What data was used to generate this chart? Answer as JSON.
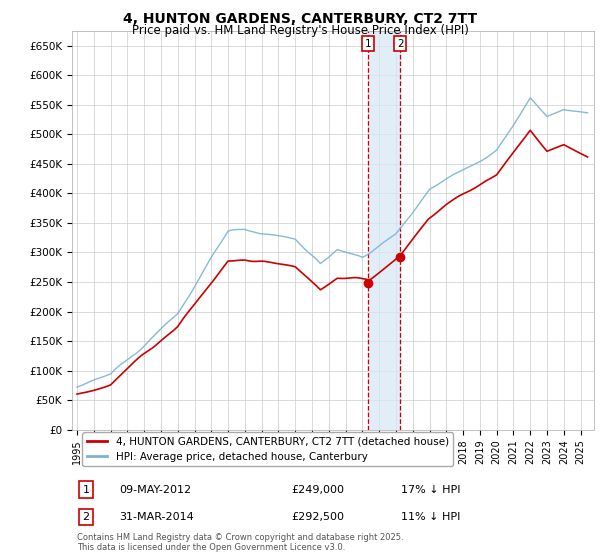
{
  "title": "4, HUNTON GARDENS, CANTERBURY, CT2 7TT",
  "subtitle": "Price paid vs. HM Land Registry's House Price Index (HPI)",
  "ylabel_ticks": [
    "£0",
    "£50K",
    "£100K",
    "£150K",
    "£200K",
    "£250K",
    "£300K",
    "£350K",
    "£400K",
    "£450K",
    "£500K",
    "£550K",
    "£600K",
    "£650K"
  ],
  "ytick_values": [
    0,
    50000,
    100000,
    150000,
    200000,
    250000,
    300000,
    350000,
    400000,
    450000,
    500000,
    550000,
    600000,
    650000
  ],
  "hpi_color": "#7ab3d4",
  "price_color": "#cc0000",
  "marker_color": "#cc0000",
  "vline_color": "#cc0000",
  "vline_shade_color": "#d6e8f5",
  "transaction1_date_num": 2012.36,
  "transaction1_price": 249000,
  "transaction2_date_num": 2014.25,
  "transaction2_price": 292500,
  "transaction1_label": "1",
  "transaction2_label": "2",
  "legend_line1": "4, HUNTON GARDENS, CANTERBURY, CT2 7TT (detached house)",
  "legend_line2": "HPI: Average price, detached house, Canterbury",
  "footnote": "Contains HM Land Registry data © Crown copyright and database right 2025.\nThis data is licensed under the Open Government Licence v3.0.",
  "background_color": "#ffffff",
  "grid_color": "#cccccc",
  "xtick_years": [
    1995,
    1996,
    1997,
    1998,
    1999,
    2000,
    2001,
    2002,
    2003,
    2004,
    2005,
    2006,
    2007,
    2008,
    2009,
    2010,
    2011,
    2012,
    2013,
    2014,
    2015,
    2016,
    2017,
    2018,
    2019,
    2020,
    2021,
    2022,
    2023,
    2024,
    2025
  ]
}
